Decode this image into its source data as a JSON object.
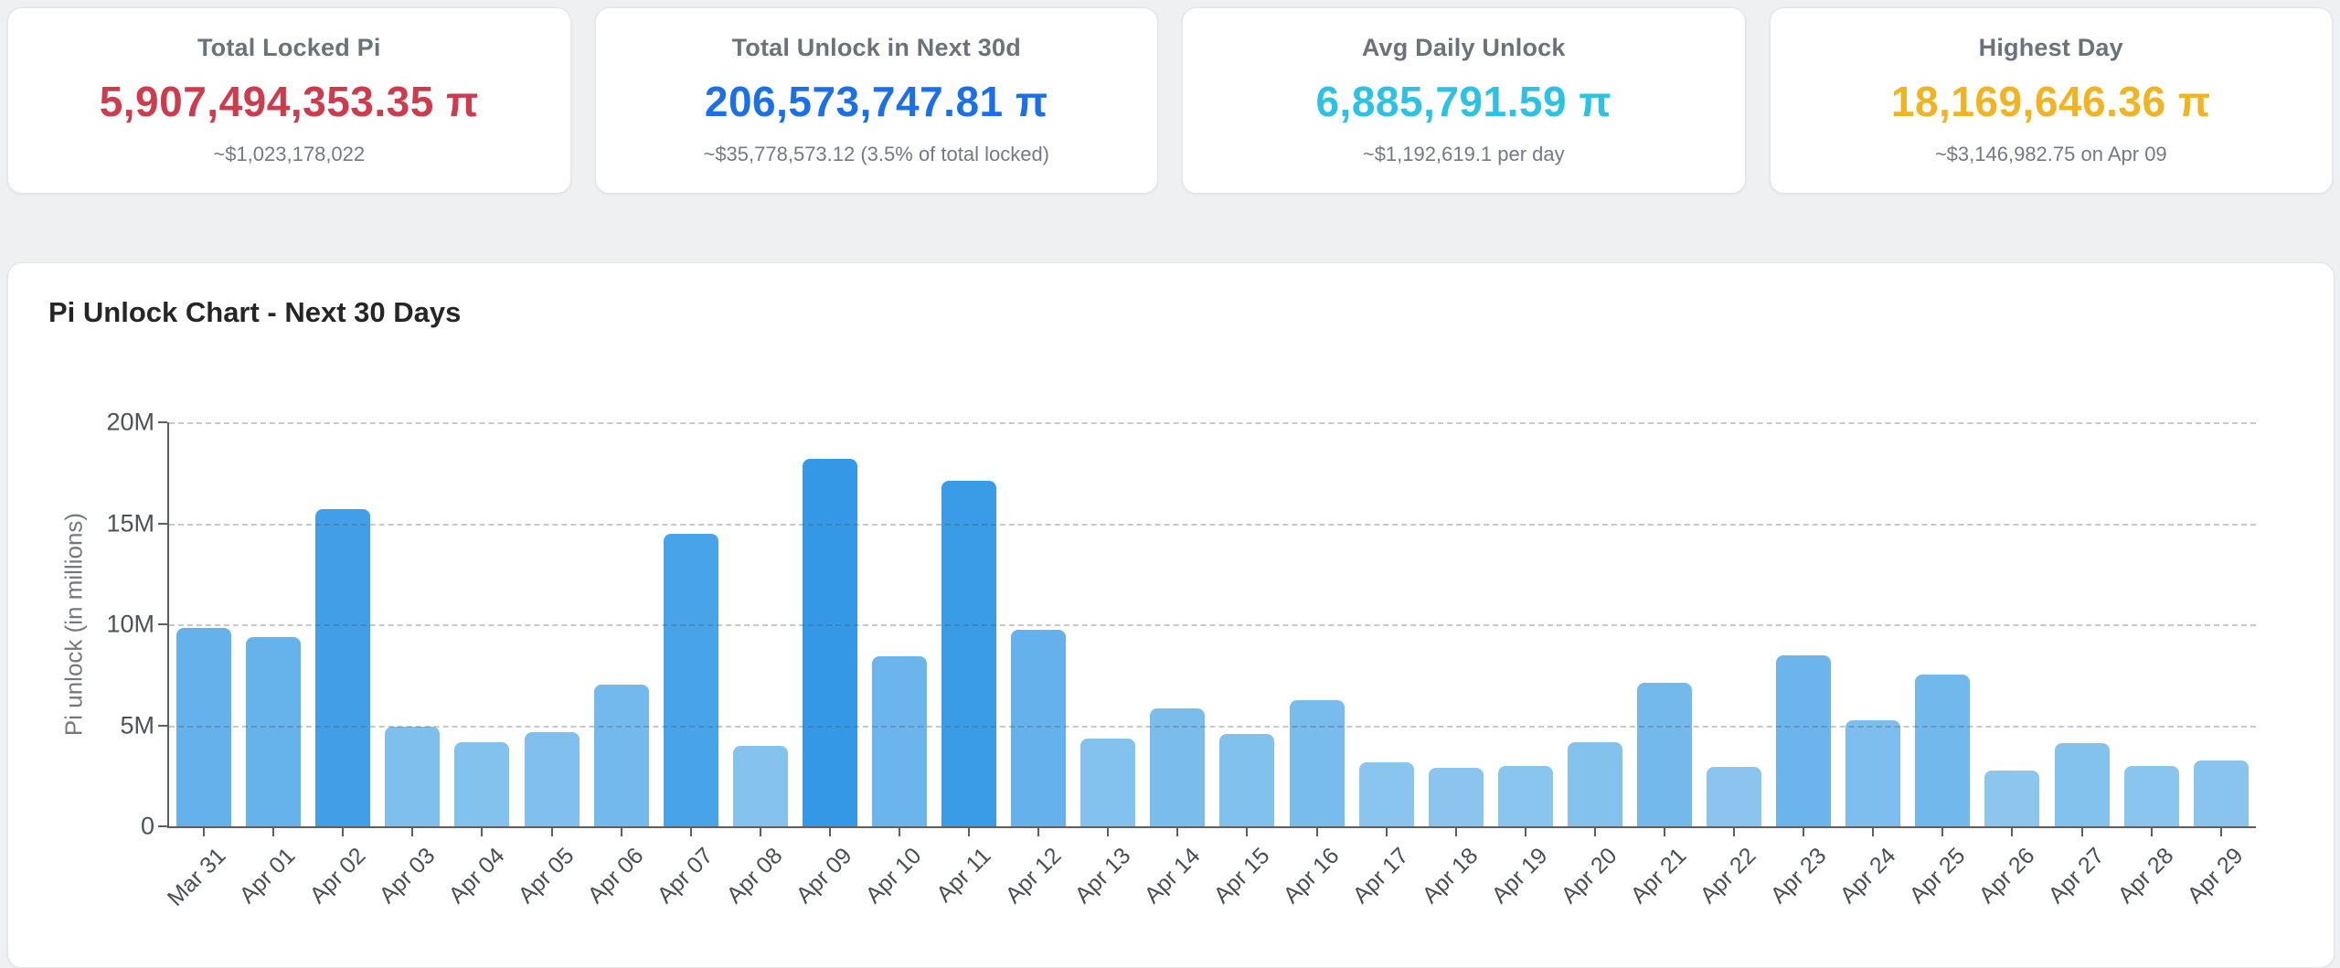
{
  "stats": [
    {
      "title": "Total Locked Pi",
      "value": "5,907,494,353.35 π",
      "subtitle": "~$1,023,178,022",
      "color": "#cd3b4c"
    },
    {
      "title": "Total Unlock in Next 30d",
      "value": "206,573,747.81 π",
      "subtitle": "~$35,778,573.12 (3.5% of total locked)",
      "color": "#1b6fe8"
    },
    {
      "title": "Avg Daily Unlock",
      "value": "6,885,791.59 π",
      "subtitle": "~$1,192,619.1 per day",
      "color": "#2bc2e6"
    },
    {
      "title": "Highest Day",
      "value": "18,169,646.36 π",
      "subtitle": "~$3,146,982.75 on Apr 09",
      "color": "#f2b322"
    }
  ],
  "chart_data": {
    "type": "bar",
    "title": "Pi Unlock Chart - Next 30 Days",
    "xlabel": "",
    "ylabel": "Pi unlock (in millions)",
    "unit": "millions of Pi",
    "ylim": [
      0,
      20
    ],
    "yticks": [
      {
        "label": "0",
        "value": 0
      },
      {
        "label": "5M",
        "value": 5
      },
      {
        "label": "10M",
        "value": 10
      },
      {
        "label": "15M",
        "value": 15
      },
      {
        "label": "20M",
        "value": 20
      }
    ],
    "grid": "horizontal-dashed",
    "legend": "none",
    "categories": [
      "Mar 31",
      "Apr 01",
      "Apr 02",
      "Apr 03",
      "Apr 04",
      "Apr 05",
      "Apr 06",
      "Apr 07",
      "Apr 08",
      "Apr 09",
      "Apr 10",
      "Apr 11",
      "Apr 12",
      "Apr 13",
      "Apr 14",
      "Apr 15",
      "Apr 16",
      "Apr 17",
      "Apr 18",
      "Apr 19",
      "Apr 20",
      "Apr 21",
      "Apr 22",
      "Apr 23",
      "Apr 24",
      "Apr 25",
      "Apr 26",
      "Apr 27",
      "Apr 28",
      "Apr 29"
    ],
    "values_millions": [
      9.8,
      9.35,
      15.7,
      4.95,
      4.15,
      4.65,
      7.0,
      14.5,
      4.0,
      18.17,
      8.4,
      17.1,
      9.75,
      4.35,
      5.85,
      4.55,
      6.25,
      3.15,
      2.9,
      3.0,
      4.15,
      7.1,
      2.95,
      8.45,
      5.25,
      7.5,
      2.75,
      4.1,
      3.0,
      3.25
    ],
    "bar_color_scale": {
      "description": "bar fill interpolated by value",
      "min_value": 2.7,
      "min_color": "#8CC6EF",
      "max_value": 18.2,
      "max_color": "#3498E6"
    }
  }
}
